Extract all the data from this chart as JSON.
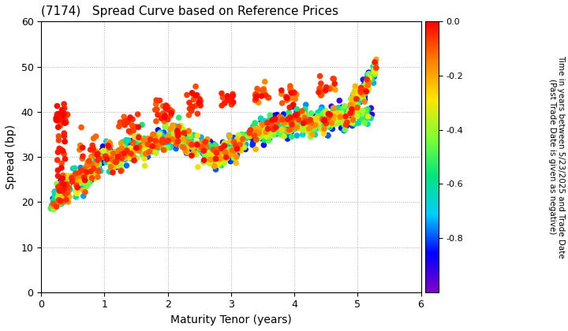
{
  "title": "(7174)   Spread Curve based on Reference Prices",
  "xlabel": "Maturity Tenor (years)",
  "ylabel": "Spread (bp)",
  "xlim": [
    0,
    6
  ],
  "ylim": [
    0,
    60
  ],
  "xticks": [
    0,
    1,
    2,
    3,
    4,
    5,
    6
  ],
  "yticks": [
    0,
    10,
    20,
    30,
    40,
    50,
    60
  ],
  "colorbar_label_line1": "Time in years between 5/23/2025 and Trade Date",
  "colorbar_label_line2": "(Past Trade Date is given as negative)",
  "cbar_vmin": -1.0,
  "cbar_vmax": 0.0,
  "cbar_ticks": [
    0.0,
    -0.2,
    -0.4,
    -0.6,
    -0.8
  ],
  "background_color": "#ffffff",
  "grid_color": "#b0b0b0",
  "point_size": 30,
  "marker": "s"
}
